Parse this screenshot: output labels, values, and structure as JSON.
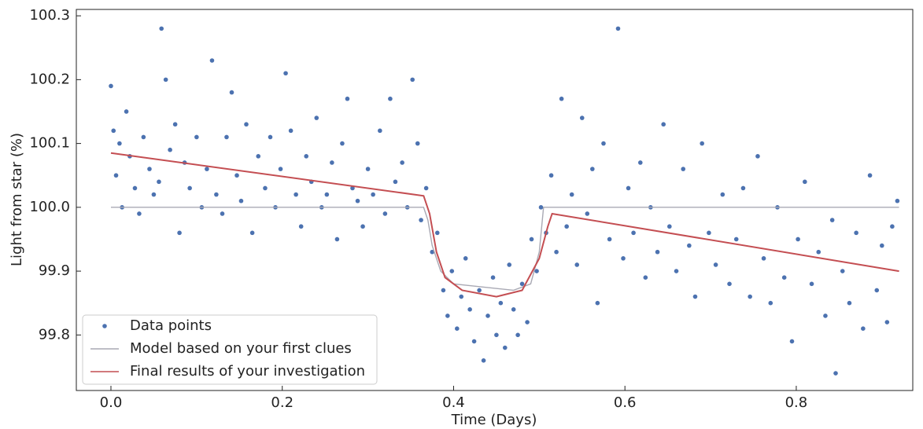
{
  "chart_data": {
    "type": "scatter",
    "xlabel": "Time (Days)",
    "ylabel": "Light from star (%)",
    "xlim": [
      -0.0404,
      0.936
    ],
    "ylim": [
      99.713,
      100.31
    ],
    "xticks": [
      {
        "value": 0,
        "label": "0.0"
      },
      0.2,
      0.4,
      0.6,
      0.8
    ],
    "yticks": [
      99.8,
      99.9,
      {
        "value": 100,
        "label": "100.0"
      },
      100.1,
      100.2,
      100.3
    ],
    "legend": "lower left",
    "series": [
      {
        "name": "Data points",
        "type": "scatter",
        "color": "#4c72b0",
        "x": [
          0.0,
          0.003,
          0.006,
          0.01,
          0.013,
          0.018,
          0.022,
          0.028,
          0.033,
          0.038,
          0.045,
          0.05,
          0.056,
          0.059,
          0.064,
          0.069,
          0.075,
          0.08,
          0.086,
          0.092,
          0.1,
          0.106,
          0.112,
          0.118,
          0.123,
          0.13,
          0.135,
          0.141,
          0.147,
          0.152,
          0.158,
          0.165,
          0.172,
          0.18,
          0.186,
          0.192,
          0.198,
          0.204,
          0.21,
          0.216,
          0.222,
          0.228,
          0.234,
          0.24,
          0.246,
          0.252,
          0.258,
          0.264,
          0.27,
          0.276,
          0.282,
          0.288,
          0.294,
          0.3,
          0.306,
          0.314,
          0.32,
          0.326,
          0.332,
          0.34,
          0.346,
          0.352,
          0.358,
          0.362,
          0.368,
          0.375,
          0.381,
          0.388,
          0.393,
          0.398,
          0.404,
          0.409,
          0.414,
          0.419,
          0.424,
          0.43,
          0.435,
          0.44,
          0.446,
          0.45,
          0.455,
          0.46,
          0.465,
          0.47,
          0.475,
          0.48,
          0.486,
          0.491,
          0.497,
          0.502,
          0.508,
          0.514,
          0.52,
          0.526,
          0.532,
          0.538,
          0.544,
          0.55,
          0.556,
          0.562,
          0.568,
          0.575,
          0.582,
          0.592,
          0.598,
          0.604,
          0.61,
          0.618,
          0.624,
          0.63,
          0.638,
          0.645,
          0.652,
          0.66,
          0.668,
          0.675,
          0.682,
          0.69,
          0.698,
          0.706,
          0.714,
          0.722,
          0.73,
          0.738,
          0.746,
          0.755,
          0.762,
          0.77,
          0.778,
          0.786,
          0.795,
          0.802,
          0.81,
          0.818,
          0.826,
          0.834,
          0.842,
          0.846,
          0.854,
          0.862,
          0.87,
          0.878,
          0.886,
          0.894,
          0.9,
          0.906,
          0.912,
          0.918
        ],
        "y": [
          100.19,
          100.12,
          100.05,
          100.1,
          100.0,
          100.15,
          100.08,
          100.03,
          99.99,
          100.11,
          100.06,
          100.02,
          100.04,
          100.28,
          100.2,
          100.09,
          100.13,
          99.96,
          100.07,
          100.03,
          100.11,
          100.0,
          100.06,
          100.23,
          100.02,
          99.99,
          100.11,
          100.18,
          100.05,
          100.01,
          100.13,
          99.96,
          100.08,
          100.03,
          100.11,
          100.0,
          100.06,
          100.21,
          100.12,
          100.02,
          99.97,
          100.08,
          100.04,
          100.14,
          100.0,
          100.02,
          100.07,
          99.95,
          100.1,
          100.17,
          100.03,
          100.01,
          99.97,
          100.06,
          100.02,
          100.12,
          99.99,
          100.17,
          100.04,
          100.07,
          100.0,
          100.2,
          100.1,
          99.98,
          100.03,
          99.93,
          99.96,
          99.87,
          99.83,
          99.9,
          99.81,
          99.86,
          99.92,
          99.84,
          99.79,
          99.87,
          99.76,
          99.83,
          99.89,
          99.8,
          99.85,
          99.78,
          99.91,
          99.84,
          99.8,
          99.88,
          99.82,
          99.95,
          99.9,
          100.0,
          99.96,
          100.05,
          99.93,
          100.17,
          99.97,
          100.02,
          99.91,
          100.14,
          99.99,
          100.06,
          99.85,
          100.1,
          99.95,
          100.28,
          99.92,
          100.03,
          99.96,
          100.07,
          99.89,
          100.0,
          99.93,
          100.13,
          99.97,
          99.9,
          100.06,
          99.94,
          99.86,
          100.1,
          99.96,
          99.91,
          100.02,
          99.88,
          99.95,
          100.03,
          99.86,
          100.08,
          99.92,
          99.85,
          100.0,
          99.89,
          99.79,
          99.95,
          100.04,
          99.88,
          99.93,
          99.83,
          99.98,
          99.74,
          99.9,
          99.85,
          99.96,
          99.81,
          100.05,
          99.87,
          99.94,
          99.82,
          99.97,
          100.01
        ]
      },
      {
        "name": "Model based on your first clues",
        "type": "line",
        "color": "#a9a9b4",
        "x": [
          0,
          0.365,
          0.37,
          0.375,
          0.385,
          0.4,
          0.47,
          0.49,
          0.5,
          0.505,
          0.92
        ],
        "y": [
          100,
          100,
          99.98,
          99.94,
          99.9,
          99.88,
          99.87,
          99.88,
          99.93,
          100,
          100
        ]
      },
      {
        "name": "Final results of your investigation",
        "type": "line",
        "color": "#c44e52",
        "x": [
          0,
          0.365,
          0.372,
          0.38,
          0.39,
          0.41,
          0.45,
          0.48,
          0.5,
          0.51,
          0.515,
          0.92
        ],
        "y": [
          100.085,
          100.018,
          99.99,
          99.93,
          99.89,
          99.87,
          99.86,
          99.87,
          99.92,
          99.97,
          99.99,
          99.9
        ]
      }
    ]
  }
}
